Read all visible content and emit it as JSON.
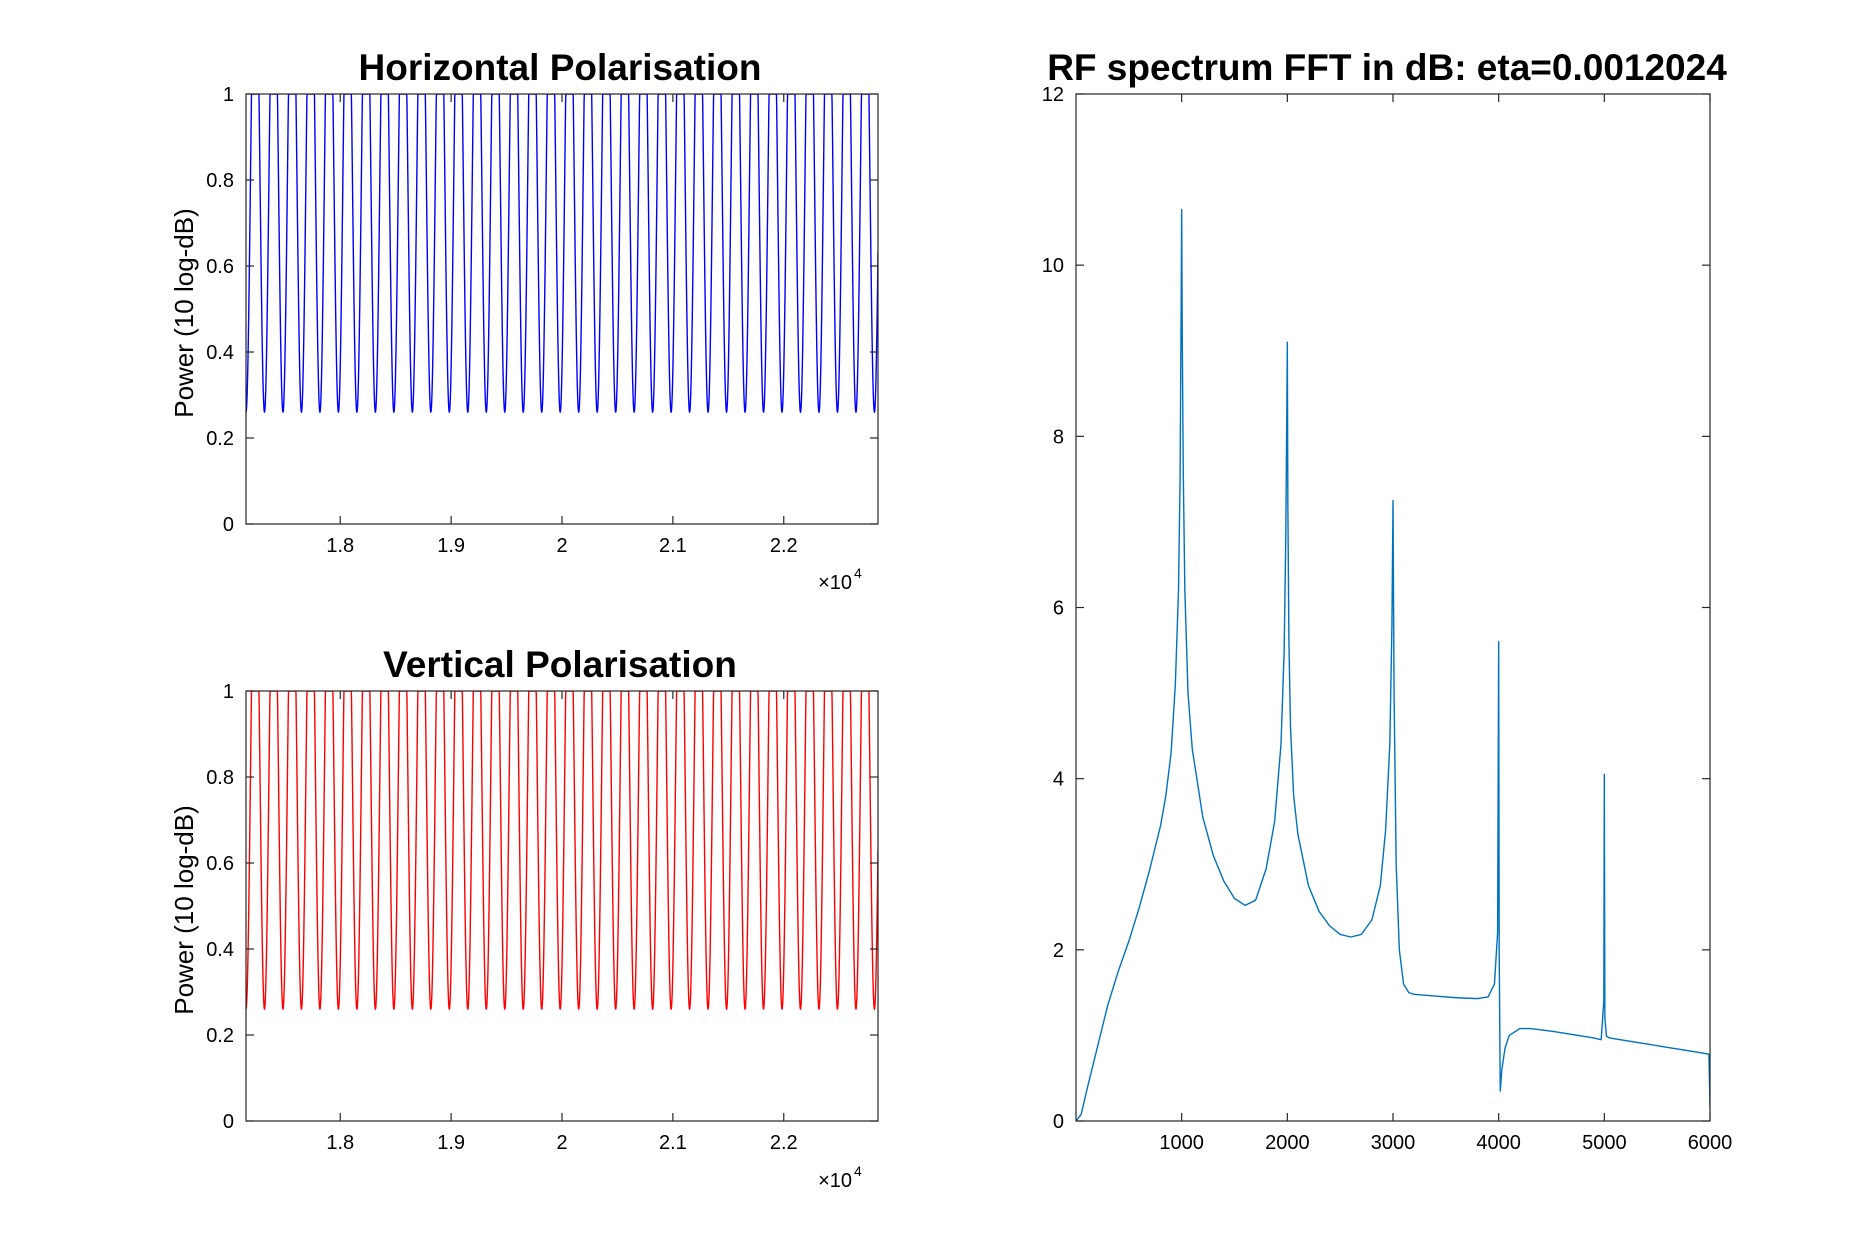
{
  "chart_data": [
    {
      "type": "line",
      "title": "Horizontal Polarisation",
      "xlabel": "",
      "ylabel": "Power (10 log-dB)",
      "xlim": [
        17150,
        22850
      ],
      "ylim": [
        0,
        1
      ],
      "x_tick_labels": [
        "1.8",
        "1.9",
        "2",
        "2.1",
        "2.2"
      ],
      "x_ticks": [
        18000,
        19000,
        20000,
        21000,
        22000
      ],
      "x_exponent": {
        "base": "×10",
        "power": "4"
      },
      "y_ticks": [
        0,
        0.2,
        0.4,
        0.6,
        0.8,
        1
      ],
      "y_tick_labels": [
        "0",
        "0.2",
        "0.4",
        "0.6",
        "0.8",
        "1"
      ],
      "color": "#0000ff",
      "series": [
        {
          "oscillation": {
            "min": 0.26,
            "max": 1.0,
            "period": 166.7,
            "clip_top": 1.0
          }
        }
      ],
      "grid": false
    },
    {
      "type": "line",
      "title": "Vertical Polarisation",
      "xlabel": "",
      "ylabel": "Power (10 log-dB)",
      "xlim": [
        17150,
        22850
      ],
      "ylim": [
        0,
        1
      ],
      "x_tick_labels": [
        "1.8",
        "1.9",
        "2",
        "2.1",
        "2.2"
      ],
      "x_ticks": [
        18000,
        19000,
        20000,
        21000,
        22000
      ],
      "x_exponent": {
        "base": "×10",
        "power": "4"
      },
      "y_ticks": [
        0,
        0.2,
        0.4,
        0.6,
        0.8,
        1
      ],
      "y_tick_labels": [
        "0",
        "0.2",
        "0.4",
        "0.6",
        "0.8",
        "1"
      ],
      "color": "#ff0000",
      "series": [
        {
          "oscillation": {
            "min": 0.26,
            "max": 1.0,
            "period": 166.7,
            "clip_top": 1.0
          }
        }
      ],
      "grid": false
    },
    {
      "type": "line",
      "title": "RF spectrum FFT in dB: eta=0.0012024",
      "xlabel": "",
      "ylabel": "",
      "xlim": [
        0,
        6000
      ],
      "ylim": [
        0,
        12
      ],
      "x_ticks": [
        1000,
        2000,
        3000,
        4000,
        5000,
        6000
      ],
      "x_tick_labels": [
        "1000",
        "2000",
        "3000",
        "4000",
        "5000",
        "6000"
      ],
      "y_ticks": [
        0,
        2,
        4,
        6,
        8,
        10,
        12
      ],
      "y_tick_labels": [
        "0",
        "2",
        "4",
        "6",
        "8",
        "10",
        "12"
      ],
      "color": "#0072bd",
      "series": [
        {
          "x": [
            0,
            50,
            100,
            200,
            300,
            400,
            500,
            600,
            700,
            800,
            850,
            900,
            940,
            970,
            985,
            995,
            1000,
            1005,
            1015,
            1030,
            1060,
            1100,
            1200,
            1300,
            1400,
            1500,
            1600,
            1700,
            1800,
            1880,
            1940,
            1970,
            1985,
            1995,
            2000,
            2005,
            2015,
            2030,
            2060,
            2100,
            2200,
            2300,
            2400,
            2500,
            2600,
            2700,
            2800,
            2880,
            2930,
            2970,
            2990,
            3000,
            3010,
            3030,
            3060,
            3100,
            3150,
            3200,
            3400,
            3600,
            3800,
            3900,
            3960,
            3990,
            4000,
            4005,
            4015,
            4030,
            4060,
            4100,
            4200,
            4300,
            4500,
            4700,
            4900,
            4970,
            4995,
            5000,
            5005,
            5020,
            5050,
            5200,
            5400,
            5600,
            5800,
            5950,
            5990,
            6000
          ],
          "y": [
            0,
            0.08,
            0.35,
            0.85,
            1.35,
            1.75,
            2.1,
            2.5,
            2.95,
            3.45,
            3.8,
            4.3,
            5.1,
            6.2,
            7.5,
            9.5,
            10.65,
            9.3,
            7.6,
            6.2,
            5.0,
            4.35,
            3.55,
            3.1,
            2.8,
            2.6,
            2.52,
            2.58,
            2.95,
            3.5,
            4.4,
            5.5,
            6.8,
            8.3,
            9.1,
            7.2,
            5.6,
            4.6,
            3.8,
            3.35,
            2.75,
            2.45,
            2.28,
            2.18,
            2.15,
            2.18,
            2.35,
            2.75,
            3.4,
            4.4,
            5.8,
            7.25,
            5.0,
            3.0,
            2.0,
            1.6,
            1.5,
            1.48,
            1.46,
            1.44,
            1.43,
            1.45,
            1.6,
            2.2,
            5.6,
            2.0,
            0.35,
            0.6,
            0.85,
            1.0,
            1.08,
            1.08,
            1.05,
            1.01,
            0.97,
            0.95,
            1.4,
            4.05,
            1.2,
            0.99,
            0.97,
            0.94,
            0.9,
            0.86,
            0.82,
            0.79,
            0.78,
            0.15
          ]
        }
      ],
      "grid": false
    }
  ]
}
